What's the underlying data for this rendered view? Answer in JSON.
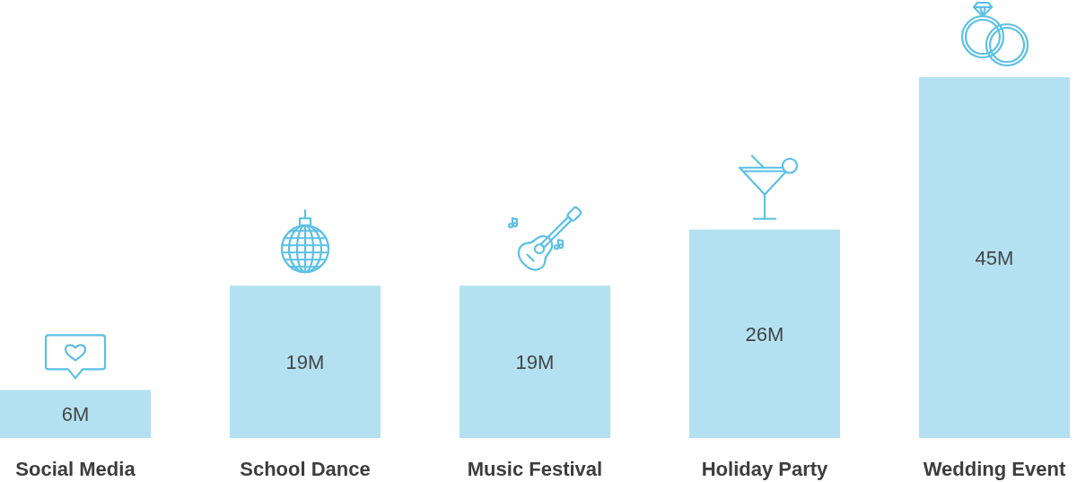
{
  "chart_data": {
    "type": "bar",
    "categories": [
      "Social Media",
      "School Dance",
      "Music Festival",
      "Holiday Party",
      "Wedding Event"
    ],
    "values": [
      6,
      19,
      19,
      26,
      45
    ],
    "value_labels": [
      "6M",
      "19M",
      "19M",
      "26M",
      "45M"
    ],
    "color": "#b3e1f2"
  }
}
